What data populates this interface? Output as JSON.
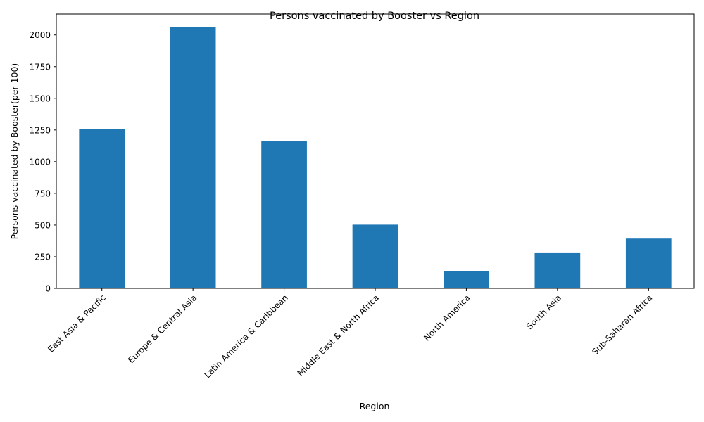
{
  "chart_data": {
    "type": "bar",
    "title": "Persons vaccinated by Booster vs Region",
    "xlabel": "Region",
    "ylabel": "Persons vaccinated by Booster(per 100)",
    "categories": [
      "East Asia & Pacific",
      "Europe & Central Asia",
      "Latin America & Caribbean",
      "Middle East & North Africa",
      "North America",
      "South Asia",
      "Sub-Saharan Africa"
    ],
    "values": [
      1255,
      2063,
      1162,
      503,
      137,
      278,
      393
    ],
    "ylim": [
      0,
      2165
    ],
    "yticks": [
      0,
      250,
      500,
      750,
      1000,
      1250,
      1500,
      1750,
      2000
    ],
    "bar_color": "#1f77b4",
    "grid": false,
    "legend": "none"
  }
}
